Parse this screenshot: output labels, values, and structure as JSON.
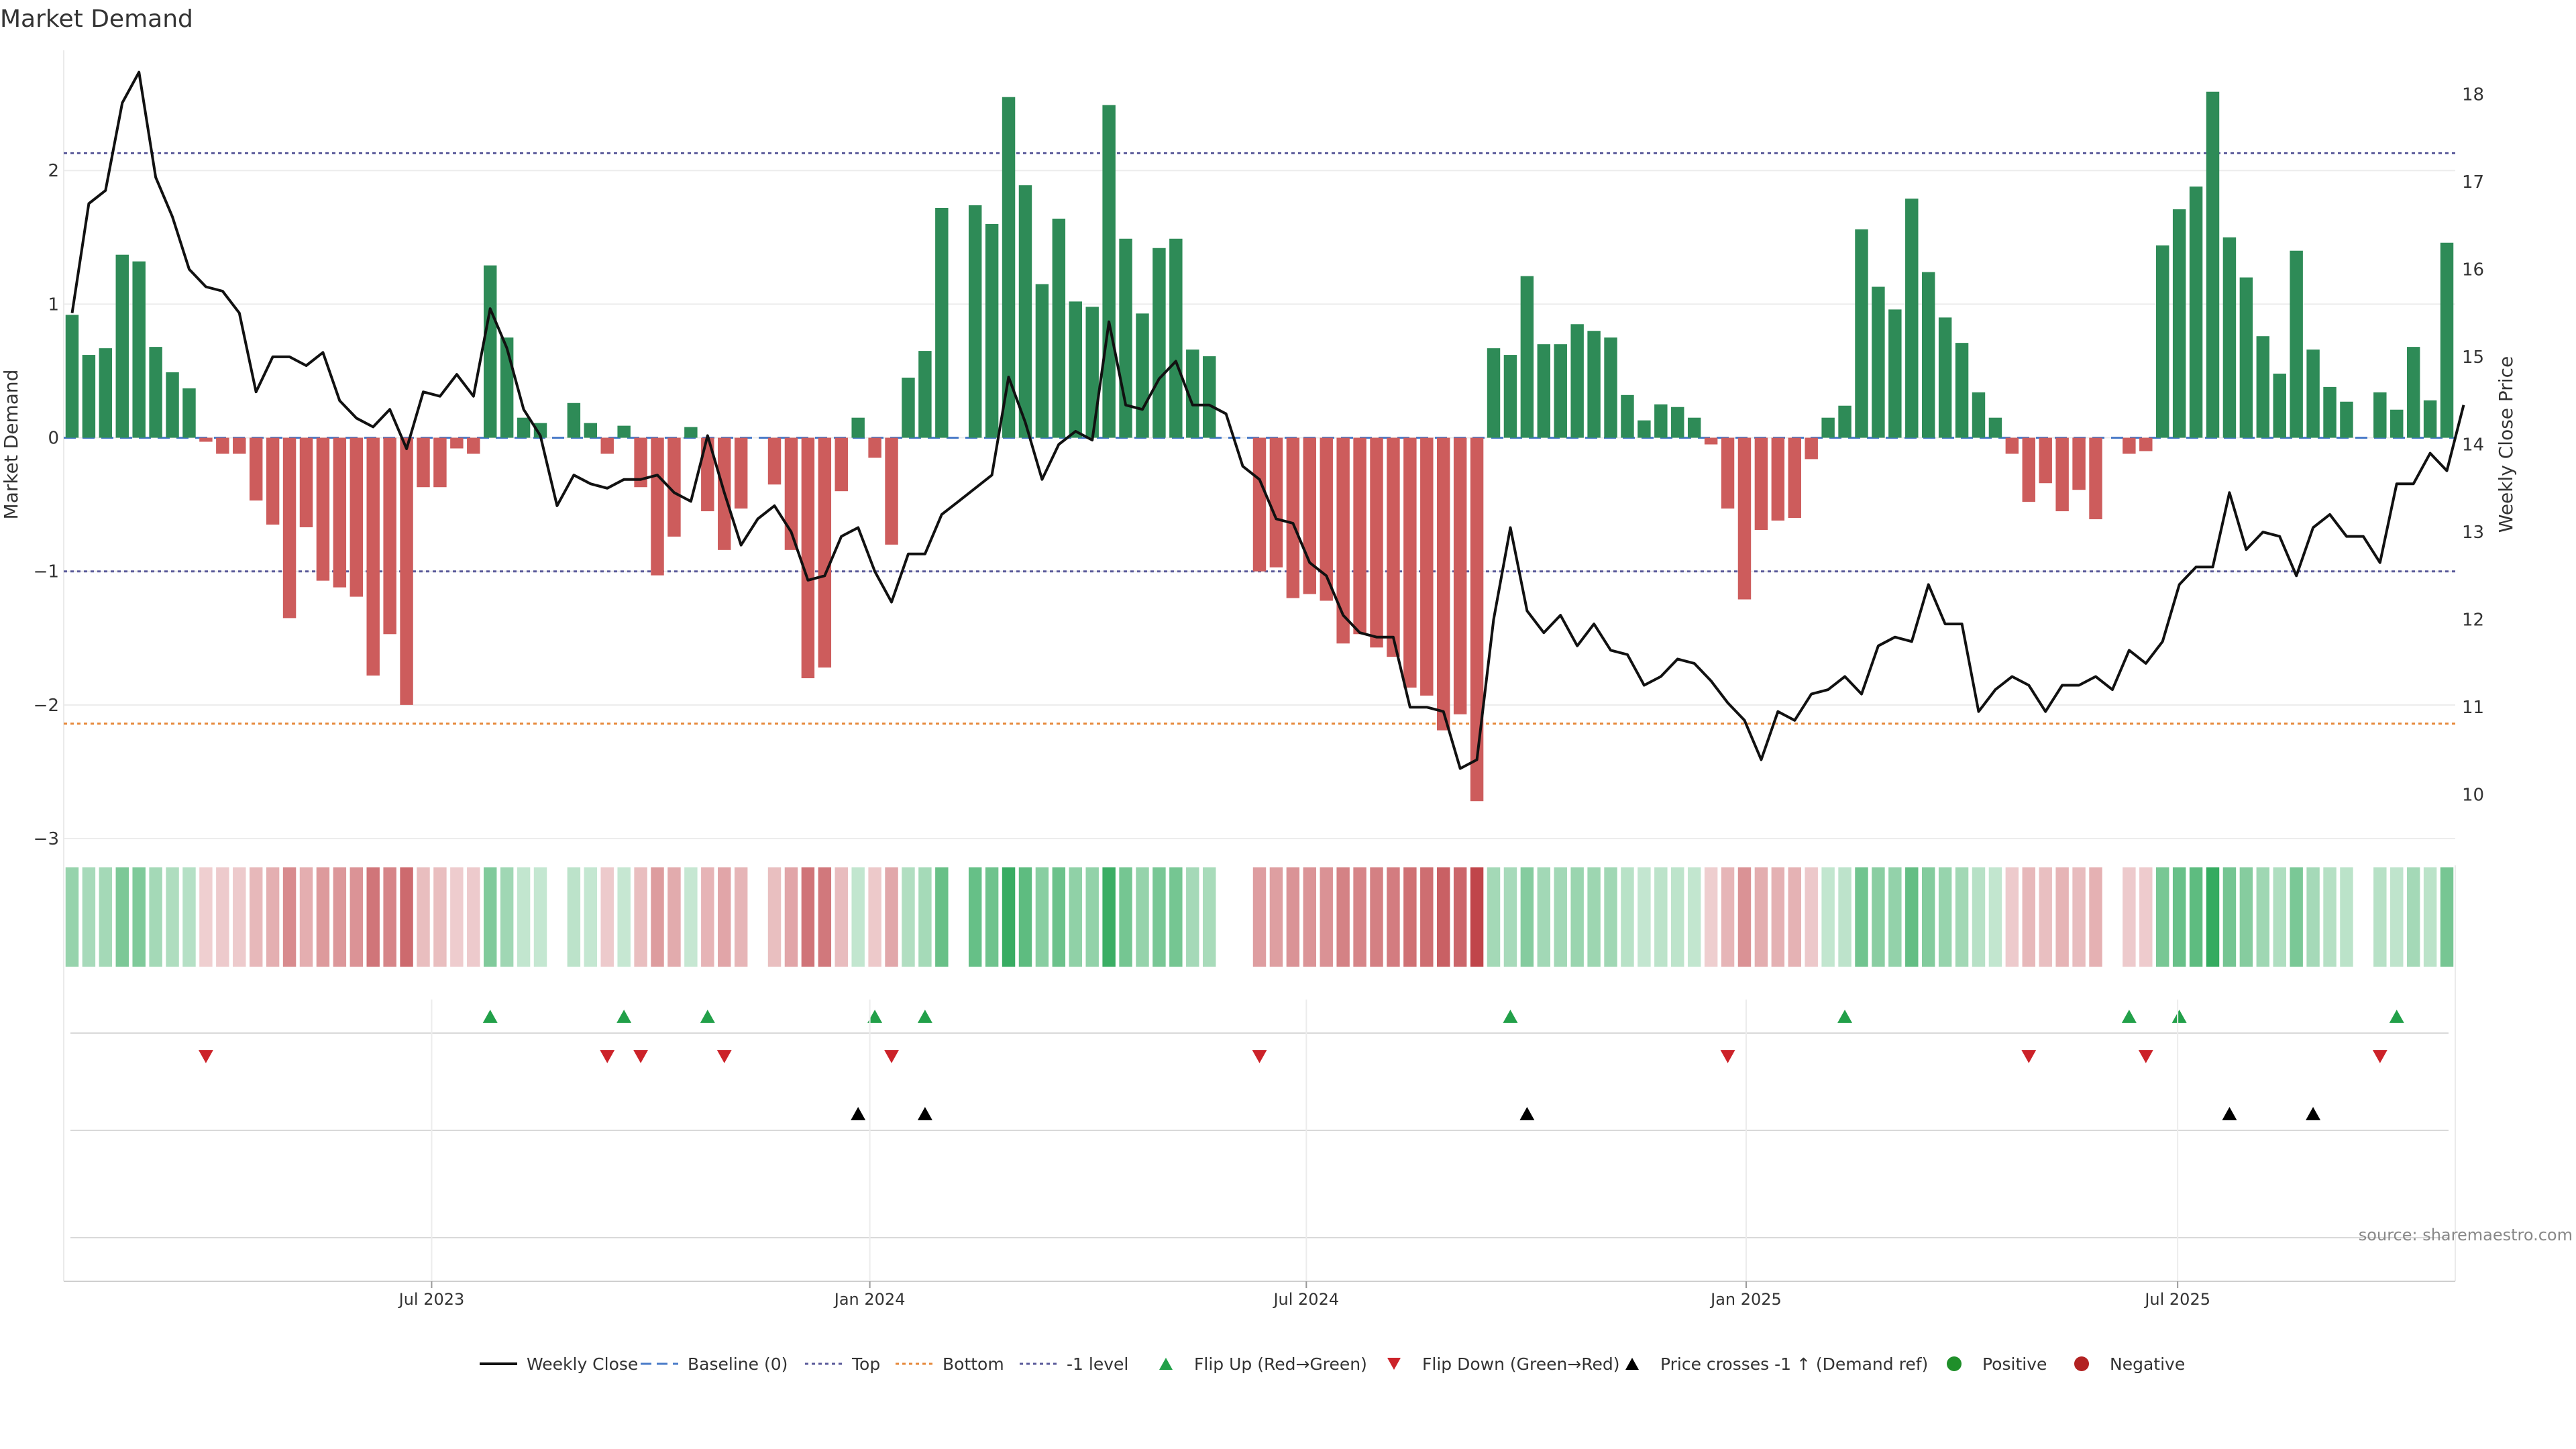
{
  "title": "Market Demand",
  "source": "source: sharemaestro.com",
  "colors": {
    "positive": "#2e8b57",
    "negative": "#cd5c5c",
    "price_line": "#111111",
    "top_line": "#5a5a9a",
    "bottom_line": "#e6883a",
    "baseline": "#4a7bc8",
    "flip_up": "#22a049",
    "flip_down": "#cc2229",
    "cross_marker": "#000000",
    "legend_positive": "#1f8f2a",
    "legend_negative": "#b22222"
  },
  "legend": [
    {
      "label": "Weekly Close",
      "icon": "solid-line",
      "color": "#111111"
    },
    {
      "label": "Baseline (0)",
      "icon": "dashed-line",
      "color": "#4a7bc8"
    },
    {
      "label": "Top",
      "icon": "dotted-line",
      "color": "#5a5a9a"
    },
    {
      "label": "Bottom",
      "icon": "dotted-line",
      "color": "#e6883a"
    },
    {
      "label": "-1 level",
      "icon": "dotted-line",
      "color": "#5a5a9a"
    },
    {
      "label": "Flip Up (Red→Green)",
      "icon": "triangle-up",
      "color": "#22a049"
    },
    {
      "label": "Flip Down (Green→Red)",
      "icon": "triangle-down",
      "color": "#cc2229"
    },
    {
      "label": "Price crosses -1 ↑ (Demand ref)",
      "icon": "triangle-up",
      "color": "#000000"
    },
    {
      "label": "Positive",
      "icon": "dot",
      "color": "#1f8f2a"
    },
    {
      "label": "Negative",
      "icon": "dot",
      "color": "#b22222"
    }
  ],
  "chart_data": {
    "type": "bar",
    "title": "Market Demand",
    "ylabel": "Market Demand",
    "y2label": "Weekly Close Price",
    "ylim": [
      -3.0,
      2.9
    ],
    "y2lim": [
      9.5,
      18.5
    ],
    "yticks": [
      -3,
      -2,
      -1,
      0,
      1,
      2
    ],
    "ytick_labels": [
      "−3",
      "−2",
      "−1",
      "0",
      "1",
      "2"
    ],
    "y2ticks": [
      10,
      11,
      12,
      13,
      14,
      15,
      16,
      17,
      18
    ],
    "y2tick_labels": [
      "10",
      "11",
      "12",
      "13",
      "14",
      "15",
      "16",
      "17",
      "18"
    ],
    "x_axis": "weeks",
    "xticks": [
      {
        "label": "Jul 2023",
        "week": 22
      },
      {
        "label": "Jan 2024",
        "week": 48.2
      },
      {
        "label": "Jul 2024",
        "week": 74.3
      },
      {
        "label": "Jan 2025",
        "week": 100.6
      },
      {
        "label": "Jul 2025",
        "week": 126.4
      }
    ],
    "reference_lines": {
      "top": 2.13,
      "bottom": -2.14,
      "minus_one": -1.0,
      "baseline": 0
    },
    "demand": [
      0.92,
      0.62,
      0.67,
      1.37,
      1.32,
      0.68,
      0.49,
      0.37,
      -0.03,
      -0.12,
      -0.12,
      -0.47,
      -0.65,
      -1.35,
      -0.67,
      -1.07,
      -1.12,
      -1.19,
      -1.78,
      -1.47,
      -2.0,
      -0.37,
      -0.37,
      -0.08,
      -0.12,
      1.29,
      0.75,
      0.15,
      0.11,
      0.0,
      0.26,
      0.11,
      -0.12,
      0.09,
      -0.37,
      -1.03,
      -0.74,
      0.08,
      -0.55,
      -0.84,
      -0.53,
      0.0,
      -0.35,
      -0.84,
      -1.8,
      -1.72,
      -0.4,
      0.15,
      -0.15,
      -0.8,
      0.45,
      0.65,
      1.72,
      0.0,
      1.74,
      1.6,
      2.55,
      1.89,
      1.15,
      1.64,
      1.02,
      0.98,
      2.49,
      1.49,
      0.93,
      1.42,
      1.49,
      0.66,
      0.61,
      0.0,
      0.0,
      -1.0,
      -0.97,
      -1.2,
      -1.17,
      -1.22,
      -1.54,
      -1.47,
      -1.57,
      -1.64,
      -1.87,
      -1.93,
      -2.19,
      -2.07,
      -2.72,
      0.67,
      0.62,
      1.21,
      0.7,
      0.7,
      0.85,
      0.8,
      0.75,
      0.32,
      0.13,
      0.25,
      0.23,
      0.15,
      -0.05,
      -0.53,
      -1.21,
      -0.69,
      -0.62,
      -0.6,
      -0.16,
      0.15,
      0.24,
      1.56,
      1.13,
      0.96,
      1.79,
      1.24,
      0.9,
      0.71,
      0.34,
      0.15,
      -0.12,
      -0.48,
      -0.34,
      -0.55,
      -0.39,
      -0.61,
      0.0,
      -0.12,
      -0.1,
      1.44,
      1.71,
      1.88,
      2.59,
      1.5,
      1.2,
      0.76,
      0.48,
      1.4,
      0.66,
      0.38,
      0.27,
      0.0,
      0.34,
      0.21,
      0.68,
      0.28,
      1.46
    ],
    "weekly_close": [
      15.5,
      16.75,
      16.9,
      17.9,
      18.25,
      17.05,
      16.6,
      16.0,
      15.8,
      15.75,
      15.5,
      14.6,
      15.0,
      15.0,
      14.9,
      15.05,
      14.5,
      14.3,
      14.2,
      14.4,
      13.95,
      14.6,
      14.55,
      14.8,
      14.55,
      15.55,
      15.1,
      14.4,
      14.1,
      13.3,
      13.65,
      13.55,
      13.5,
      13.6,
      13.6,
      13.65,
      13.45,
      13.35,
      14.1,
      13.45,
      12.85,
      13.15,
      13.3,
      13.0,
      12.45,
      12.5,
      12.95,
      13.05,
      12.55,
      12.2,
      12.75,
      12.75,
      13.2,
      13.35,
      13.5,
      13.65,
      14.77,
      14.25,
      13.6,
      14.0,
      14.15,
      14.05,
      15.4,
      14.45,
      14.4,
      14.75,
      14.95,
      14.45,
      14.45,
      14.35,
      13.75,
      13.6,
      13.15,
      13.1,
      12.65,
      12.5,
      12.05,
      11.85,
      11.8,
      11.8,
      11.0,
      11.0,
      10.95,
      10.3,
      10.4,
      12.0,
      13.05,
      12.1,
      11.85,
      12.05,
      11.7,
      11.95,
      11.65,
      11.6,
      11.25,
      11.35,
      11.55,
      11.5,
      11.3,
      11.05,
      10.85,
      10.4,
      10.95,
      10.85,
      11.15,
      11.2,
      11.35,
      11.15,
      11.7,
      11.8,
      11.75,
      12.4,
      11.95,
      11.95,
      10.95,
      11.2,
      11.35,
      11.25,
      10.95,
      11.25,
      11.25,
      11.35,
      11.2,
      11.65,
      11.5,
      11.75,
      12.4,
      12.6,
      12.6,
      13.45,
      12.8,
      13.0,
      12.95,
      12.5,
      13.05,
      13.2,
      12.95,
      12.95,
      12.65,
      13.55,
      13.55,
      13.9,
      13.7,
      14.45
    ],
    "flip_up_weeks": [
      25,
      33,
      38,
      48,
      51,
      86,
      106,
      123,
      126,
      139
    ],
    "flip_down_weeks": [
      8,
      32,
      34,
      39,
      49,
      71,
      99,
      117,
      124,
      138
    ],
    "price_cross_weeks": [
      47,
      51,
      87,
      129,
      134
    ]
  }
}
